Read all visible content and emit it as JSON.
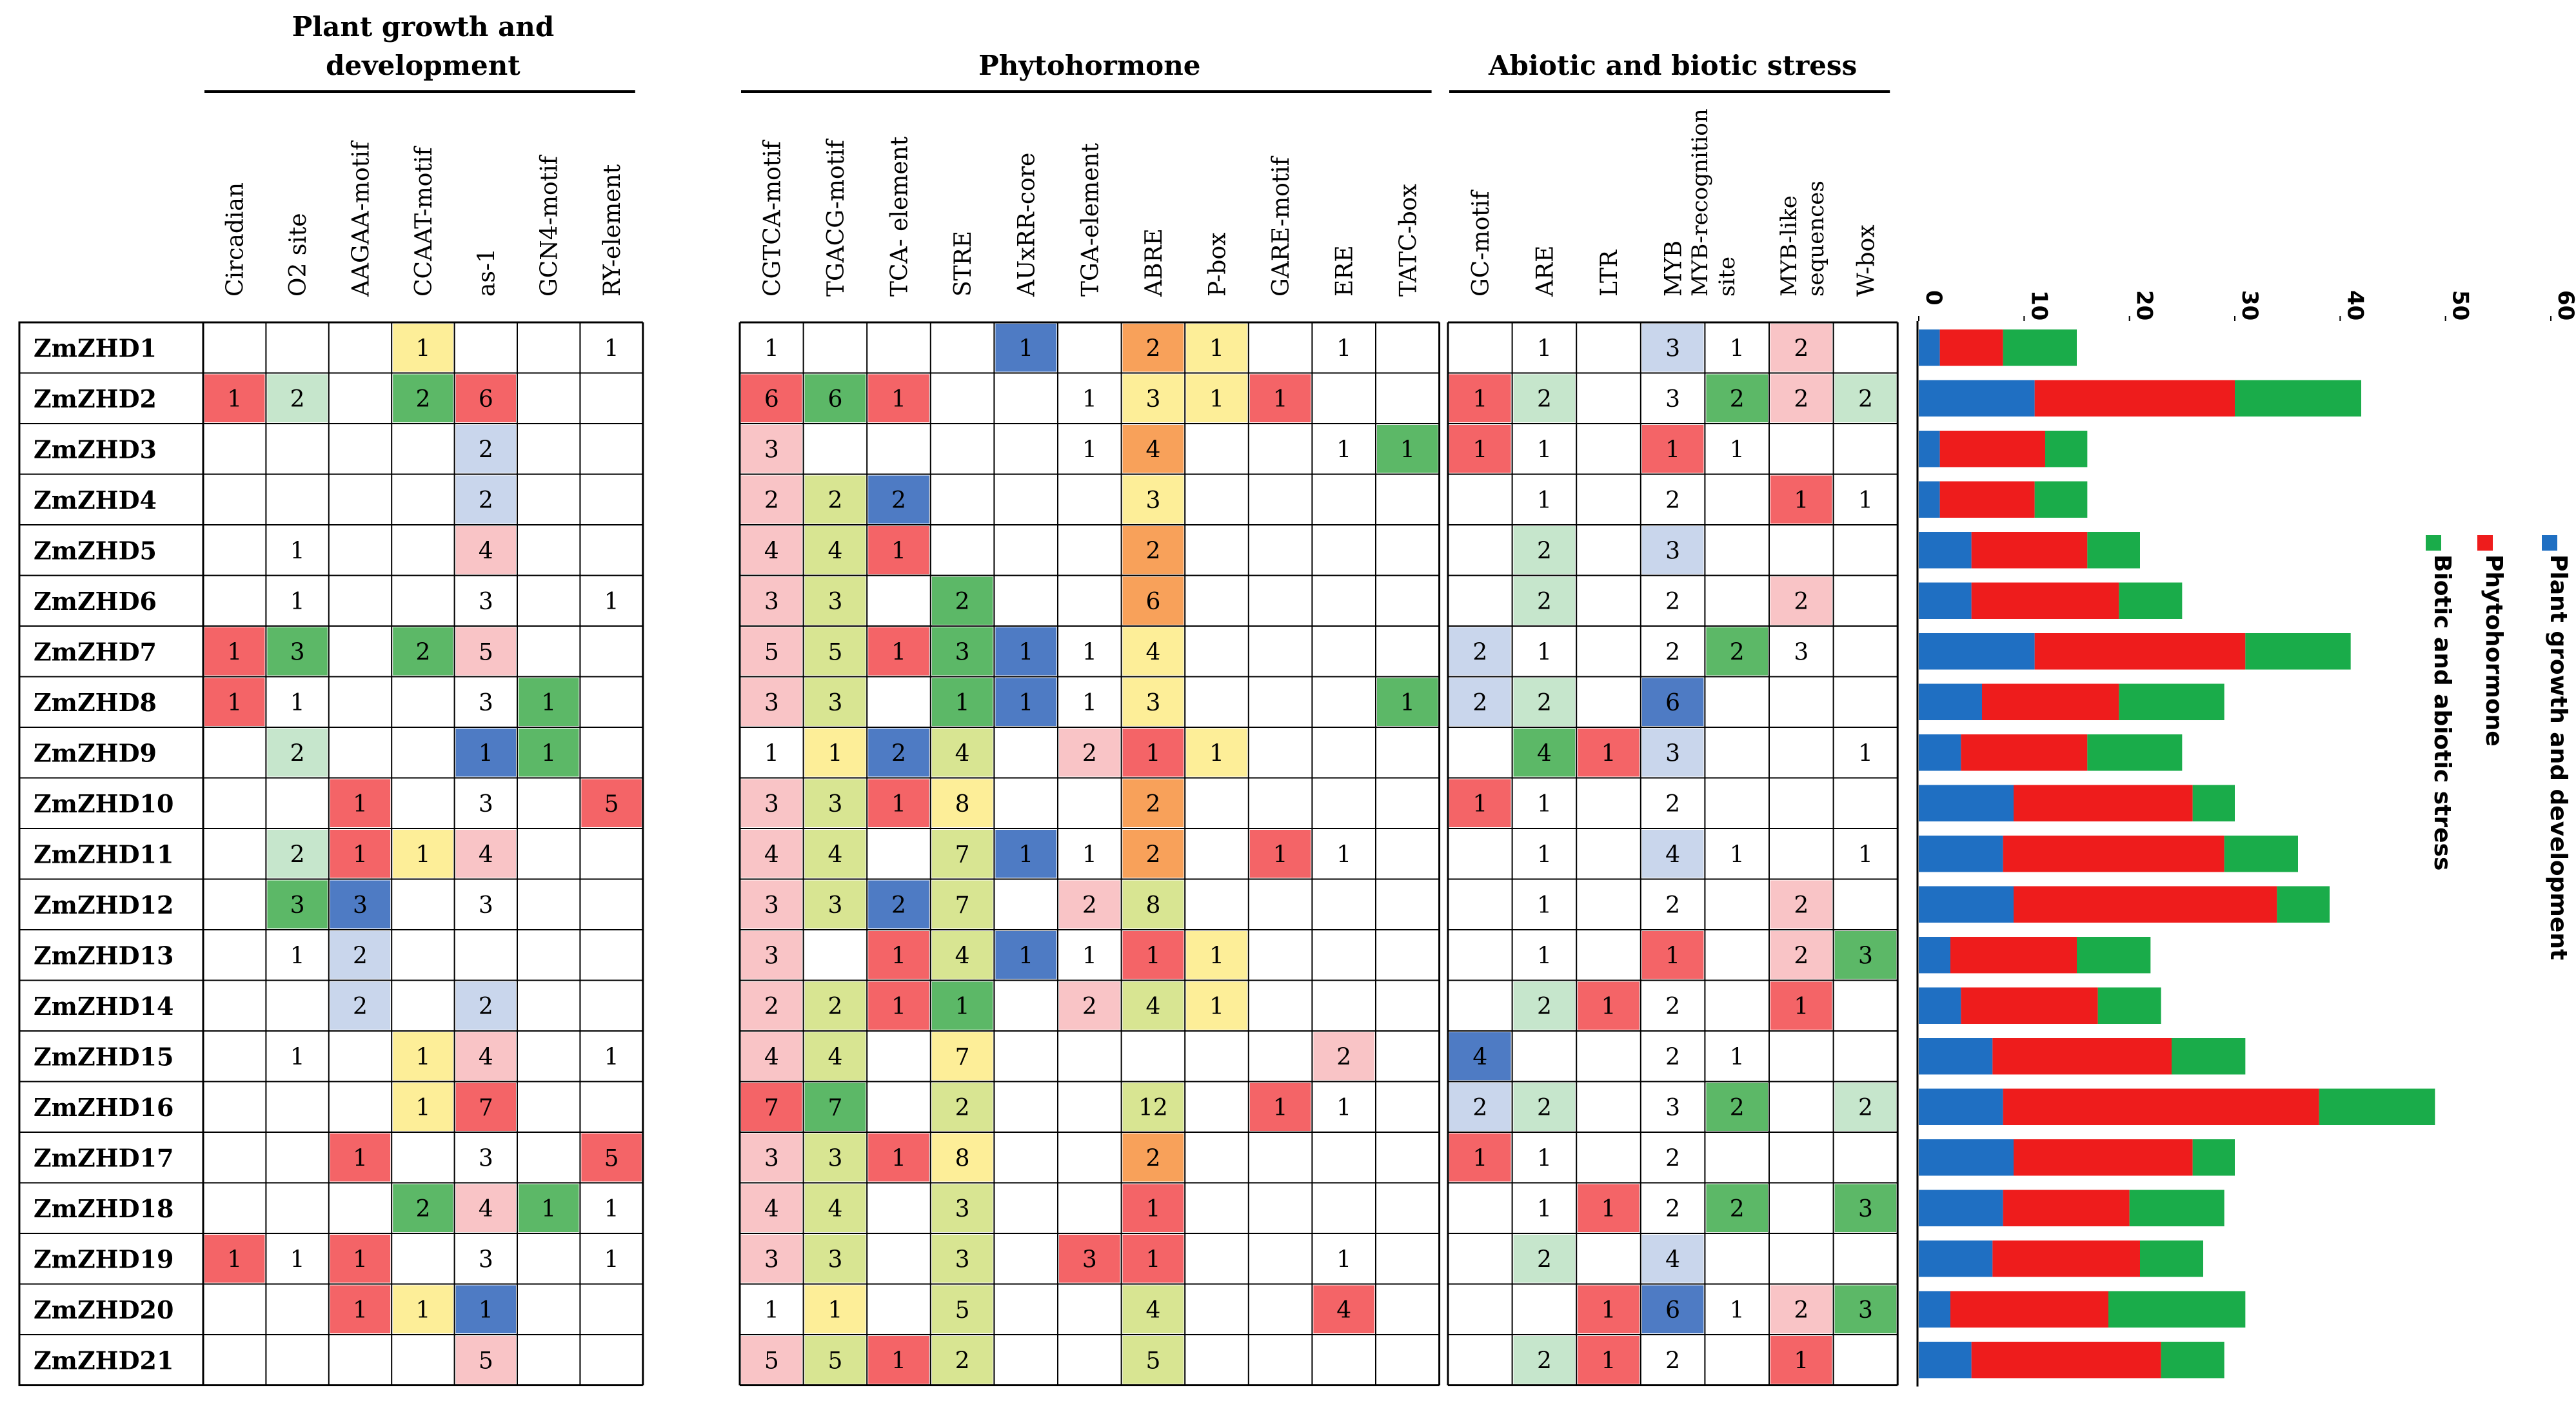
{
  "chart_data": [
    {
      "type": "heatmap",
      "groups": [
        {
          "title": "Plant growth and development",
          "columns": [
            "Circadian",
            "O2 site",
            "AAGAA-motif",
            "CCAAT-motif",
            "as-1",
            "GCN4-motif",
            "RY-element"
          ]
        },
        {
          "title": "Phytohormone",
          "columns": [
            "CGTCA-motif",
            "TGACG-motif",
            "TCA- element",
            "STRE",
            "AUxRR-core",
            "TGA-element",
            "ABRE",
            "P-box",
            "GARE-motif",
            "ERE",
            "TATC-box"
          ]
        },
        {
          "title": "Abiotic and biotic stress",
          "columns": [
            "GC-motif",
            "ARE",
            "LTR",
            "MYB",
            "MYB-recognition site",
            "MYB-like sequences",
            "W-box"
          ]
        }
      ],
      "rows": [
        "ZmZHD1",
        "ZmZHD2",
        "ZmZHD3",
        "ZmZHD4",
        "ZmZHD5",
        "ZmZHD6",
        "ZmZHD7",
        "ZmZHD8",
        "ZmZHD9",
        "ZmZHD10",
        "ZmZHD11",
        "ZmZHD12",
        "ZmZHD13",
        "ZmZHD14",
        "ZmZHD15",
        "ZmZHD16",
        "ZmZHD17",
        "ZmZHD18",
        "ZmZHD19",
        "ZmZHD20",
        "ZmZHD21"
      ],
      "values": [
        [
          null,
          null,
          null,
          1,
          null,
          null,
          1,
          1,
          null,
          null,
          null,
          1,
          null,
          2,
          1,
          null,
          1,
          null,
          null,
          1,
          null,
          3,
          1,
          2,
          null
        ],
        [
          1,
          2,
          null,
          2,
          6,
          null,
          null,
          6,
          6,
          1,
          null,
          null,
          1,
          3,
          1,
          1,
          null,
          null,
          1,
          2,
          null,
          3,
          2,
          2,
          2
        ],
        [
          null,
          null,
          null,
          null,
          2,
          null,
          null,
          3,
          null,
          null,
          null,
          null,
          1,
          4,
          null,
          null,
          1,
          1,
          1,
          1,
          null,
          1,
          1,
          null,
          null
        ],
        [
          null,
          null,
          null,
          null,
          2,
          null,
          null,
          2,
          2,
          2,
          null,
          null,
          null,
          3,
          null,
          null,
          null,
          null,
          null,
          1,
          null,
          2,
          null,
          1,
          1
        ],
        [
          null,
          1,
          null,
          null,
          4,
          null,
          null,
          4,
          4,
          1,
          null,
          null,
          null,
          2,
          null,
          null,
          null,
          null,
          null,
          2,
          null,
          3,
          null,
          null,
          null
        ],
        [
          null,
          1,
          null,
          null,
          3,
          null,
          1,
          3,
          3,
          null,
          2,
          null,
          null,
          6,
          null,
          null,
          null,
          null,
          null,
          2,
          null,
          2,
          null,
          2,
          null
        ],
        [
          1,
          3,
          null,
          2,
          5,
          null,
          null,
          5,
          5,
          1,
          3,
          1,
          1,
          4,
          null,
          null,
          null,
          null,
          2,
          1,
          null,
          2,
          2,
          3,
          null
        ],
        [
          1,
          1,
          null,
          null,
          3,
          1,
          null,
          3,
          3,
          null,
          1,
          1,
          1,
          3,
          null,
          null,
          null,
          1,
          2,
          2,
          null,
          6,
          null,
          null,
          null
        ],
        [
          null,
          2,
          null,
          null,
          1,
          1,
          null,
          1,
          1,
          2,
          4,
          null,
          2,
          1,
          1,
          null,
          null,
          null,
          null,
          4,
          1,
          3,
          null,
          null,
          1
        ],
        [
          null,
          null,
          1,
          null,
          3,
          null,
          5,
          3,
          3,
          1,
          8,
          null,
          null,
          2,
          null,
          null,
          null,
          null,
          1,
          1,
          null,
          2,
          null,
          null,
          null
        ],
        [
          null,
          2,
          1,
          1,
          4,
          null,
          null,
          4,
          4,
          null,
          7,
          1,
          1,
          2,
          null,
          1,
          1,
          null,
          null,
          1,
          null,
          4,
          1,
          null,
          1
        ],
        [
          null,
          3,
          3,
          null,
          3,
          null,
          null,
          3,
          3,
          2,
          7,
          null,
          2,
          8,
          null,
          null,
          null,
          null,
          null,
          1,
          null,
          2,
          null,
          2,
          null
        ],
        [
          null,
          1,
          2,
          null,
          null,
          null,
          null,
          3,
          null,
          1,
          4,
          1,
          1,
          1,
          1,
          null,
          null,
          null,
          null,
          1,
          null,
          1,
          null,
          2,
          3
        ],
        [
          null,
          null,
          2,
          null,
          2,
          null,
          null,
          2,
          2,
          1,
          1,
          null,
          2,
          4,
          1,
          null,
          null,
          null,
          null,
          2,
          1,
          2,
          null,
          1,
          null
        ],
        [
          null,
          1,
          null,
          1,
          4,
          null,
          1,
          4,
          4,
          null,
          7,
          null,
          null,
          null,
          null,
          null,
          2,
          null,
          4,
          null,
          null,
          2,
          1,
          null,
          null
        ],
        [
          null,
          null,
          null,
          1,
          7,
          null,
          null,
          7,
          7,
          null,
          2,
          null,
          null,
          12,
          null,
          1,
          1,
          null,
          2,
          2,
          null,
          3,
          2,
          null,
          2
        ],
        [
          null,
          null,
          1,
          null,
          3,
          null,
          5,
          3,
          3,
          1,
          8,
          null,
          null,
          2,
          null,
          null,
          null,
          null,
          1,
          1,
          null,
          2,
          null,
          null,
          null
        ],
        [
          null,
          null,
          null,
          2,
          4,
          1,
          1,
          4,
          4,
          null,
          3,
          null,
          null,
          1,
          null,
          null,
          null,
          null,
          null,
          1,
          1,
          2,
          2,
          null,
          3
        ],
        [
          1,
          1,
          1,
          null,
          3,
          null,
          1,
          3,
          3,
          null,
          3,
          null,
          3,
          1,
          null,
          null,
          1,
          null,
          null,
          2,
          null,
          4,
          null,
          null,
          null
        ],
        [
          null,
          null,
          1,
          1,
          1,
          null,
          null,
          1,
          1,
          null,
          5,
          null,
          null,
          4,
          null,
          null,
          4,
          null,
          null,
          null,
          1,
          6,
          1,
          2,
          3
        ],
        [
          null,
          null,
          null,
          null,
          5,
          null,
          null,
          5,
          5,
          1,
          2,
          null,
          null,
          5,
          null,
          null,
          null,
          null,
          null,
          2,
          1,
          2,
          null,
          1,
          null
        ]
      ],
      "cell_colors": [
        [
          0,
          0,
          0,
          4,
          0,
          0,
          0,
          0,
          0,
          0,
          0,
          6,
          0,
          3,
          4,
          0,
          0,
          0,
          0,
          0,
          0,
          5,
          0,
          2,
          0
        ],
        [
          1,
          8,
          0,
          7,
          1,
          0,
          0,
          1,
          7,
          1,
          0,
          0,
          0,
          4,
          4,
          1,
          0,
          0,
          1,
          8,
          0,
          0,
          7,
          2,
          8
        ],
        [
          0,
          0,
          0,
          0,
          5,
          0,
          0,
          2,
          0,
          0,
          0,
          0,
          0,
          3,
          0,
          0,
          0,
          7,
          1,
          0,
          0,
          1,
          0,
          0,
          0
        ],
        [
          0,
          0,
          0,
          0,
          5,
          0,
          0,
          2,
          9,
          6,
          0,
          0,
          0,
          4,
          0,
          0,
          0,
          0,
          0,
          0,
          0,
          0,
          0,
          1,
          0
        ],
        [
          0,
          0,
          0,
          0,
          2,
          0,
          0,
          2,
          9,
          1,
          0,
          0,
          0,
          3,
          0,
          0,
          0,
          0,
          0,
          8,
          0,
          5,
          0,
          0,
          0
        ],
        [
          0,
          0,
          0,
          0,
          0,
          0,
          0,
          2,
          9,
          0,
          7,
          0,
          0,
          3,
          0,
          0,
          0,
          0,
          0,
          8,
          0,
          0,
          0,
          2,
          0
        ],
        [
          1,
          7,
          0,
          7,
          2,
          0,
          0,
          2,
          9,
          1,
          7,
          6,
          0,
          4,
          0,
          0,
          0,
          0,
          5,
          0,
          0,
          0,
          7,
          0,
          0
        ],
        [
          1,
          0,
          0,
          0,
          0,
          7,
          0,
          2,
          9,
          0,
          7,
          6,
          0,
          4,
          0,
          0,
          0,
          7,
          5,
          8,
          0,
          6,
          0,
          0,
          0
        ],
        [
          0,
          8,
          0,
          0,
          6,
          7,
          0,
          0,
          4,
          6,
          9,
          0,
          2,
          1,
          4,
          0,
          0,
          0,
          0,
          7,
          1,
          5,
          0,
          0,
          0
        ],
        [
          0,
          0,
          1,
          0,
          0,
          0,
          1,
          2,
          9,
          1,
          4,
          0,
          0,
          3,
          0,
          0,
          0,
          0,
          1,
          0,
          0,
          0,
          0,
          0,
          0
        ],
        [
          0,
          8,
          1,
          4,
          2,
          0,
          0,
          2,
          9,
          0,
          9,
          6,
          0,
          3,
          0,
          1,
          0,
          0,
          0,
          0,
          0,
          5,
          0,
          0,
          0
        ],
        [
          0,
          7,
          6,
          0,
          0,
          0,
          0,
          2,
          9,
          6,
          9,
          0,
          2,
          9,
          0,
          0,
          0,
          0,
          0,
          0,
          0,
          0,
          0,
          2,
          0
        ],
        [
          0,
          0,
          5,
          0,
          0,
          0,
          0,
          2,
          0,
          1,
          9,
          6,
          0,
          1,
          4,
          0,
          0,
          0,
          0,
          0,
          0,
          1,
          0,
          2,
          7
        ],
        [
          0,
          0,
          5,
          0,
          5,
          0,
          0,
          2,
          9,
          1,
          7,
          0,
          2,
          9,
          4,
          0,
          0,
          0,
          0,
          8,
          1,
          0,
          0,
          1,
          0
        ],
        [
          0,
          0,
          0,
          4,
          2,
          0,
          0,
          2,
          9,
          0,
          4,
          0,
          0,
          0,
          0,
          0,
          2,
          0,
          6,
          0,
          0,
          0,
          0,
          0,
          0
        ],
        [
          0,
          0,
          0,
          4,
          1,
          0,
          0,
          1,
          7,
          0,
          9,
          0,
          0,
          9,
          0,
          1,
          0,
          0,
          5,
          8,
          0,
          0,
          7,
          0,
          8
        ],
        [
          0,
          0,
          1,
          0,
          0,
          0,
          1,
          2,
          9,
          1,
          4,
          0,
          0,
          3,
          0,
          0,
          0,
          0,
          1,
          0,
          0,
          0,
          0,
          0,
          0
        ],
        [
          0,
          0,
          0,
          7,
          2,
          7,
          0,
          2,
          9,
          0,
          9,
          0,
          0,
          1,
          0,
          0,
          0,
          0,
          0,
          0,
          1,
          0,
          7,
          0,
          7
        ],
        [
          1,
          0,
          1,
          0,
          0,
          0,
          0,
          2,
          9,
          0,
          9,
          0,
          1,
          1,
          0,
          0,
          0,
          0,
          0,
          8,
          0,
          5,
          0,
          0,
          0
        ],
        [
          0,
          0,
          1,
          4,
          6,
          0,
          0,
          0,
          4,
          0,
          9,
          0,
          0,
          9,
          0,
          0,
          1,
          0,
          0,
          0,
          1,
          6,
          0,
          2,
          7
        ],
        [
          0,
          0,
          0,
          0,
          2,
          0,
          0,
          2,
          9,
          1,
          9,
          0,
          0,
          9,
          0,
          0,
          0,
          0,
          0,
          8,
          1,
          0,
          0,
          1,
          0
        ]
      ],
      "palette": [
        "#ffffff",
        "#f46467",
        "#f9c4c6",
        "#f8a15a",
        "#fdee98",
        "#c9d6ec",
        "#4e7bc4",
        "#5cb867",
        "#c6e6cc",
        "#d8e592"
      ],
      "bar_chart": {
        "type": "bar",
        "orientation": "horizontal-stacked",
        "categories": [
          "ZmZHD1",
          "ZmZHD2",
          "ZmZHD3",
          "ZmZHD4",
          "ZmZHD5",
          "ZmZHD6",
          "ZmZHD7",
          "ZmZHD8",
          "ZmZHD9",
          "ZmZHD10",
          "ZmZHD11",
          "ZmZHD12",
          "ZmZHD13",
          "ZmZHD14",
          "ZmZHD15",
          "ZmZHD16",
          "ZmZHD17",
          "ZmZHD18",
          "ZmZHD19",
          "ZmZHD20",
          "ZmZHD21"
        ],
        "series": [
          {
            "name": "Plant growth and development",
            "color": "#1f6fc2",
            "values": [
              2,
              11,
              2,
              2,
              5,
              5,
              11,
              6,
              4,
              9,
              8,
              9,
              3,
              4,
              7,
              8,
              9,
              8,
              7,
              3,
              5
            ]
          },
          {
            "name": "Phytohormone",
            "color": "#ee1c1c",
            "values": [
              6,
              19,
              10,
              9,
              11,
              14,
              20,
              13,
              12,
              17,
              21,
              25,
              12,
              13,
              17,
              30,
              17,
              12,
              14,
              15,
              18
            ]
          },
          {
            "name": "Biotic and abiotic stress",
            "color": "#1aac4a",
            "values": [
              7,
              12,
              4,
              5,
              5,
              6,
              10,
              10,
              9,
              4,
              7,
              5,
              7,
              6,
              7,
              11,
              4,
              9,
              6,
              13,
              6
            ]
          }
        ],
        "ticks": [
          0,
          10,
          20,
          30,
          40,
          50,
          60
        ],
        "xlim": [
          0,
          60
        ]
      }
    }
  ]
}
